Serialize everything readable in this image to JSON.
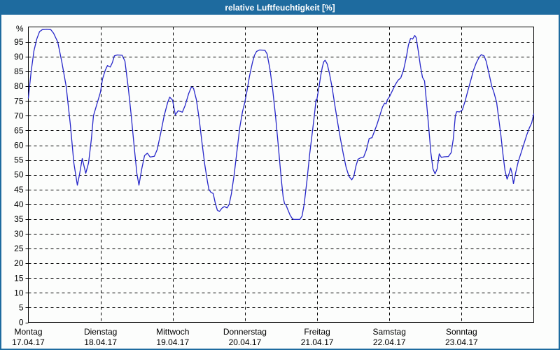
{
  "window": {
    "title": "relative Luftfeuchtigkeit [%]"
  },
  "colors": {
    "titlebar_bg": "#1e6b9f",
    "titlebar_text": "#ffffff",
    "frame_border": "#1e6b9f",
    "plot_background": "#fcfdfc",
    "line": "#2626c9",
    "grid": "#000000",
    "axis": "#000000",
    "label_text": "#000000"
  },
  "chart_data": {
    "type": "line",
    "title": "relative Luftfeuchtigkeit [%]",
    "ylabel": "%",
    "ylim": [
      0,
      100
    ],
    "grid": true,
    "legend": "none",
    "y_ticks": [
      0,
      5,
      10,
      15,
      20,
      25,
      30,
      35,
      40,
      45,
      50,
      55,
      60,
      65,
      70,
      75,
      80,
      85,
      90,
      95
    ],
    "y_axis_unit_label": "%",
    "x_days": [
      {
        "name": "Montag",
        "date": "17.04.17"
      },
      {
        "name": "Dienstag",
        "date": "18.04.17"
      },
      {
        "name": "Mittwoch",
        "date": "19.04.17"
      },
      {
        "name": "Donnerstag",
        "date": "20.04.17"
      },
      {
        "name": "Freitag",
        "date": "21.04.17"
      },
      {
        "name": "Samstag",
        "date": "22.04.17"
      },
      {
        "name": "Sonntag",
        "date": "23.04.17"
      }
    ],
    "series": [
      {
        "name": "relative Luftfeuchtigkeit",
        "unit": "%",
        "points": [
          [
            0.0,
            76
          ],
          [
            0.039,
            85
          ],
          [
            0.078,
            92
          ],
          [
            0.116,
            96
          ],
          [
            0.155,
            98.5
          ],
          [
            0.194,
            99.2
          ],
          [
            0.252,
            99.3
          ],
          [
            0.31,
            99.2
          ],
          [
            0.349,
            98
          ],
          [
            0.407,
            95
          ],
          [
            0.465,
            88
          ],
          [
            0.524,
            80
          ],
          [
            0.582,
            67
          ],
          [
            0.63,
            54
          ],
          [
            0.679,
            46.5
          ],
          [
            0.708,
            50
          ],
          [
            0.747,
            55.5
          ],
          [
            0.776,
            52.5
          ],
          [
            0.795,
            50.5
          ],
          [
            0.834,
            54
          ],
          [
            0.873,
            62
          ],
          [
            0.902,
            70
          ],
          [
            0.95,
            74
          ],
          [
            0.999,
            78
          ],
          [
            1.028,
            82.5
          ],
          [
            1.066,
            85.5
          ],
          [
            1.096,
            87
          ],
          [
            1.134,
            86.5
          ],
          [
            1.163,
            88
          ],
          [
            1.192,
            90.3
          ],
          [
            1.231,
            90.6
          ],
          [
            1.299,
            90.5
          ],
          [
            1.338,
            88.5
          ],
          [
            1.386,
            79
          ],
          [
            1.425,
            70
          ],
          [
            1.464,
            60
          ],
          [
            1.503,
            50.5
          ],
          [
            1.532,
            46.5
          ],
          [
            1.571,
            52
          ],
          [
            1.609,
            56.5
          ],
          [
            1.648,
            57.3
          ],
          [
            1.687,
            56
          ],
          [
            1.745,
            56.3
          ],
          [
            1.784,
            58.5
          ],
          [
            1.832,
            64
          ],
          [
            1.881,
            70
          ],
          [
            1.929,
            74.5
          ],
          [
            1.958,
            76.3
          ],
          [
            1.997,
            75.3
          ],
          [
            2.036,
            70.3
          ],
          [
            2.075,
            71.7
          ],
          [
            2.104,
            71.5
          ],
          [
            2.133,
            71.2
          ],
          [
            2.172,
            73.5
          ],
          [
            2.22,
            77.5
          ],
          [
            2.259,
            79.8
          ],
          [
            2.288,
            79.3
          ],
          [
            2.327,
            75.5
          ],
          [
            2.366,
            69
          ],
          [
            2.404,
            61
          ],
          [
            2.443,
            53.5
          ],
          [
            2.482,
            47.5
          ],
          [
            2.501,
            45
          ],
          [
            2.53,
            44
          ],
          [
            2.56,
            43.7
          ],
          [
            2.589,
            40.5
          ],
          [
            2.618,
            38
          ],
          [
            2.647,
            37.6
          ],
          [
            2.686,
            38.8
          ],
          [
            2.715,
            39.2
          ],
          [
            2.753,
            38.8
          ],
          [
            2.782,
            40
          ],
          [
            2.812,
            43.5
          ],
          [
            2.85,
            50
          ],
          [
            2.889,
            58
          ],
          [
            2.928,
            66
          ],
          [
            2.967,
            71.5
          ],
          [
            2.996,
            74.3
          ],
          [
            3.025,
            78
          ],
          [
            3.064,
            83.5
          ],
          [
            3.103,
            88
          ],
          [
            3.132,
            90.5
          ],
          [
            3.161,
            91.8
          ],
          [
            3.2,
            92.3
          ],
          [
            3.277,
            92.2
          ],
          [
            3.306,
            91
          ],
          [
            3.345,
            86
          ],
          [
            3.384,
            79
          ],
          [
            3.423,
            70
          ],
          [
            3.461,
            60
          ],
          [
            3.49,
            52
          ],
          [
            3.51,
            47
          ],
          [
            3.529,
            42.5
          ],
          [
            3.548,
            40.2
          ],
          [
            3.568,
            39.8
          ],
          [
            3.597,
            38
          ],
          [
            3.626,
            36.3
          ],
          [
            3.655,
            35.2
          ],
          [
            3.674,
            34.9
          ],
          [
            3.762,
            34.9
          ],
          [
            3.791,
            36
          ],
          [
            3.82,
            40
          ],
          [
            3.859,
            48
          ],
          [
            3.897,
            57
          ],
          [
            3.936,
            65
          ],
          [
            3.965,
            71
          ],
          [
            3.985,
            75.5
          ],
          [
            3.994,
            75.2
          ],
          [
            4.024,
            79.5
          ],
          [
            4.053,
            84
          ],
          [
            4.072,
            86.5
          ],
          [
            4.091,
            88.3
          ],
          [
            4.111,
            88.8
          ],
          [
            4.14,
            87.5
          ],
          [
            4.169,
            84.5
          ],
          [
            4.208,
            79.5
          ],
          [
            4.246,
            73.5
          ],
          [
            4.285,
            67.5
          ],
          [
            4.324,
            62
          ],
          [
            4.363,
            57
          ],
          [
            4.402,
            52.5
          ],
          [
            4.44,
            49.5
          ],
          [
            4.479,
            48.3
          ],
          [
            4.508,
            49.5
          ],
          [
            4.537,
            53
          ],
          [
            4.566,
            55.3
          ],
          [
            4.605,
            55.8
          ],
          [
            4.644,
            56
          ],
          [
            4.683,
            58.5
          ],
          [
            4.721,
            62.3
          ],
          [
            4.76,
            62.6
          ],
          [
            4.789,
            64.5
          ],
          [
            4.828,
            67
          ],
          [
            4.867,
            70
          ],
          [
            4.906,
            73
          ],
          [
            4.935,
            74.3
          ],
          [
            4.954,
            74
          ],
          [
            4.974,
            75.5
          ],
          [
            5.003,
            76.5
          ],
          [
            5.042,
            78.5
          ],
          [
            5.081,
            80.5
          ],
          [
            5.119,
            82
          ],
          [
            5.158,
            82.8
          ],
          [
            5.197,
            85.5
          ],
          [
            5.236,
            90
          ],
          [
            5.265,
            94
          ],
          [
            5.294,
            96.2
          ],
          [
            5.323,
            96
          ],
          [
            5.352,
            97.2
          ],
          [
            5.371,
            96.5
          ],
          [
            5.4,
            92
          ],
          [
            5.429,
            87
          ],
          [
            5.459,
            83
          ],
          [
            5.488,
            81.8
          ],
          [
            5.517,
            74
          ],
          [
            5.546,
            66
          ],
          [
            5.575,
            57.5
          ],
          [
            5.604,
            52
          ],
          [
            5.633,
            50.3
          ],
          [
            5.662,
            52
          ],
          [
            5.691,
            57.1
          ],
          [
            5.72,
            55.9
          ],
          [
            5.759,
            56.1
          ],
          [
            5.817,
            56.2
          ],
          [
            5.856,
            57.5
          ],
          [
            5.885,
            62
          ],
          [
            5.914,
            70
          ],
          [
            5.933,
            71.4
          ],
          [
            5.972,
            71.3
          ],
          [
            6.011,
            72
          ],
          [
            6.05,
            75
          ],
          [
            6.088,
            78.5
          ],
          [
            6.127,
            82
          ],
          [
            6.166,
            85.5
          ],
          [
            6.205,
            88
          ],
          [
            6.244,
            89.8
          ],
          [
            6.273,
            90.7
          ],
          [
            6.312,
            90.3
          ],
          [
            6.341,
            88.5
          ],
          [
            6.379,
            84.5
          ],
          [
            6.418,
            80
          ],
          [
            6.447,
            78
          ],
          [
            6.486,
            74.5
          ],
          [
            6.515,
            69
          ],
          [
            6.544,
            63.5
          ],
          [
            6.573,
            57
          ],
          [
            6.602,
            51.5
          ],
          [
            6.631,
            48.5
          ],
          [
            6.66,
            50.5
          ],
          [
            6.68,
            52.3
          ],
          [
            6.699,
            50.5
          ],
          [
            6.719,
            47
          ],
          [
            6.748,
            50.5
          ],
          [
            6.786,
            54.5
          ],
          [
            6.825,
            57.5
          ],
          [
            6.864,
            60.5
          ],
          [
            6.903,
            63.5
          ],
          [
            6.941,
            66
          ],
          [
            6.971,
            67.5
          ],
          [
            7.0,
            70.6
          ]
        ]
      }
    ]
  }
}
